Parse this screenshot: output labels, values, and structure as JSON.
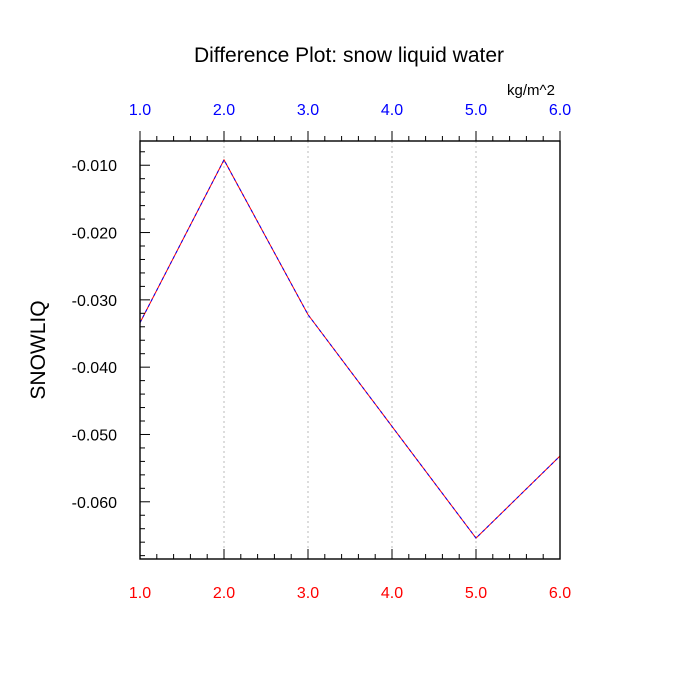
{
  "chart_data": {
    "type": "line",
    "title": "Difference Plot: snow liquid water",
    "units": "kg/m^2",
    "ylabel": "SNOWLIQ",
    "xlabel": "",
    "x": [
      1.0,
      2.0,
      3.0,
      4.0,
      5.0,
      6.0
    ],
    "xlim": [
      1.0,
      6.0
    ],
    "ylim": [
      -0.0685,
      -0.0064
    ],
    "xticks_bottom": [
      "1.0",
      "2.0",
      "3.0",
      "4.0",
      "5.0",
      "6.0"
    ],
    "xticks_top": [
      "1.0",
      "2.0",
      "3.0",
      "4.0",
      "5.0",
      "6.0"
    ],
    "yticks": [
      -0.01,
      -0.02,
      -0.03,
      -0.04,
      -0.05,
      -0.06
    ],
    "ytick_labels": [
      "-0.010",
      "-0.020",
      "-0.030",
      "-0.040",
      "-0.050",
      "-0.060"
    ],
    "series": [
      {
        "values": [
          -0.0334,
          -0.0092,
          -0.0322,
          -0.0488,
          -0.0654,
          -0.0532
        ]
      }
    ],
    "grid": "vertical dotted at major x ticks",
    "colors": {
      "bottom_axis_labels": "#ff0000",
      "top_axis_labels": "#0000ff",
      "line_primary": "#ff0000",
      "line_secondary": "#0000ff",
      "grid": "#bbbbbb",
      "axis": "#000000"
    }
  }
}
